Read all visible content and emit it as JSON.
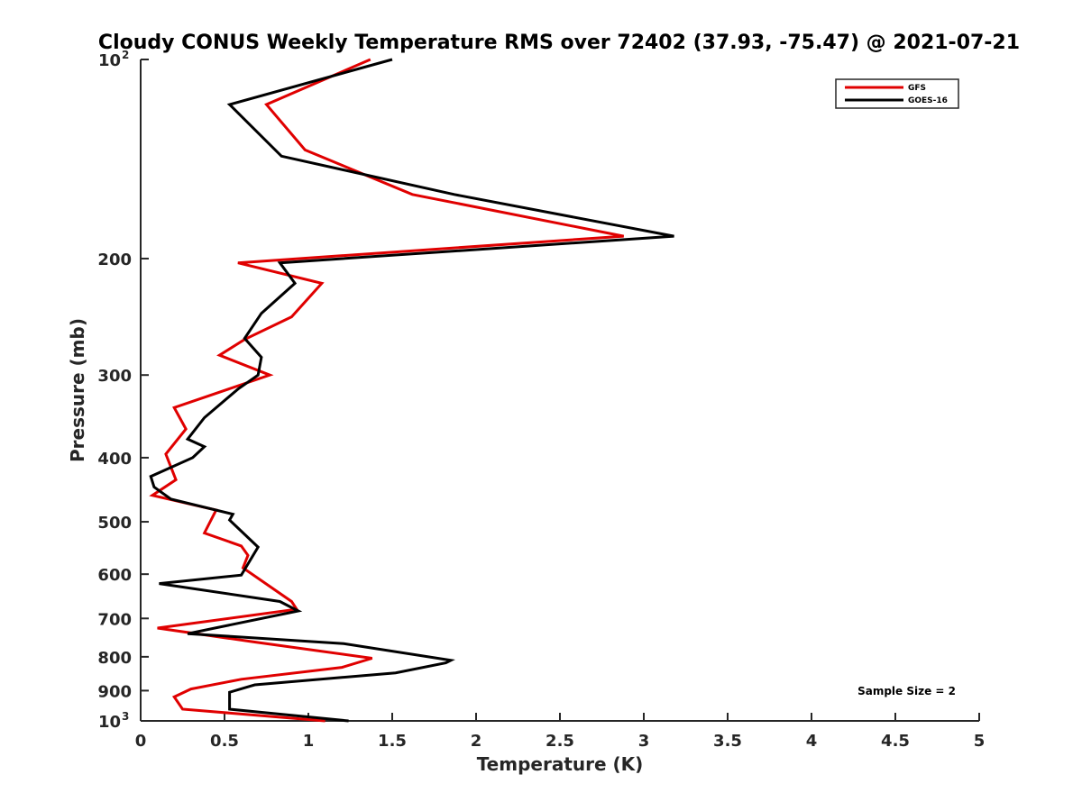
{
  "chart_data": {
    "type": "line",
    "title": "Cloudy CONUS Weekly Temperature RMS over 72402 (37.93, -75.47) @ 2021-07-21",
    "xlabel": "Temperature (K)",
    "ylabel": "Pressure (mb)",
    "xlim": [
      0,
      5
    ],
    "ylim": [
      100,
      1000
    ],
    "y_scale": "log",
    "y_reversed": true,
    "grid": false,
    "legend_position": "top-right",
    "x_ticks": [
      "0",
      "0.5",
      "1",
      "1.5",
      "2",
      "2.5",
      "3",
      "3.5",
      "4",
      "4.5",
      "5"
    ],
    "y_ticks": [
      {
        "value": 100,
        "base": "10",
        "sup": "2"
      },
      {
        "value": 200,
        "base": "200",
        "sup": ""
      },
      {
        "value": 300,
        "base": "300",
        "sup": ""
      },
      {
        "value": 400,
        "base": "400",
        "sup": ""
      },
      {
        "value": 500,
        "base": "500",
        "sup": ""
      },
      {
        "value": 600,
        "base": "600",
        "sup": ""
      },
      {
        "value": 700,
        "base": "700",
        "sup": ""
      },
      {
        "value": 800,
        "base": "800",
        "sup": ""
      },
      {
        "value": 900,
        "base": "900",
        "sup": ""
      },
      {
        "value": 1000,
        "base": "10",
        "sup": "3"
      }
    ],
    "annotation": "Sample Size = 2",
    "series": [
      {
        "name": "GFS",
        "color": "#e00000",
        "points": [
          [
            1.37,
            100
          ],
          [
            0.75,
            117
          ],
          [
            0.98,
            137
          ],
          [
            1.62,
            160
          ],
          [
            2.88,
            185
          ],
          [
            0.58,
            203
          ],
          [
            1.08,
            218
          ],
          [
            0.9,
            245
          ],
          [
            0.62,
            265
          ],
          [
            0.47,
            280
          ],
          [
            0.77,
            300
          ],
          [
            0.2,
            336
          ],
          [
            0.27,
            362
          ],
          [
            0.15,
            395
          ],
          [
            0.21,
            432
          ],
          [
            0.07,
            456
          ],
          [
            0.45,
            480
          ],
          [
            0.38,
            520
          ],
          [
            0.6,
            544
          ],
          [
            0.64,
            562
          ],
          [
            0.61,
            587
          ],
          [
            0.9,
            660
          ],
          [
            0.93,
            678
          ],
          [
            0.1,
            724
          ],
          [
            0.68,
            760
          ],
          [
            1.38,
            804
          ],
          [
            1.2,
            830
          ],
          [
            0.6,
            865
          ],
          [
            0.3,
            895
          ],
          [
            0.2,
            920
          ],
          [
            0.25,
            960
          ],
          [
            1.1,
            1000
          ]
        ]
      },
      {
        "name": "GOES-16",
        "color": "#000000",
        "points": [
          [
            1.5,
            100
          ],
          [
            0.53,
            117
          ],
          [
            0.84,
            140
          ],
          [
            1.87,
            160
          ],
          [
            3.18,
            185
          ],
          [
            0.83,
            203
          ],
          [
            0.92,
            218
          ],
          [
            0.72,
            242
          ],
          [
            0.62,
            264
          ],
          [
            0.72,
            282
          ],
          [
            0.7,
            300
          ],
          [
            0.58,
            315
          ],
          [
            0.38,
            348
          ],
          [
            0.28,
            375
          ],
          [
            0.38,
            385
          ],
          [
            0.31,
            400
          ],
          [
            0.06,
            427
          ],
          [
            0.08,
            443
          ],
          [
            0.18,
            462
          ],
          [
            0.55,
            487
          ],
          [
            0.53,
            497
          ],
          [
            0.68,
            540
          ],
          [
            0.7,
            546
          ],
          [
            0.6,
            602
          ],
          [
            0.11,
            620
          ],
          [
            0.83,
            660
          ],
          [
            0.94,
            682
          ],
          [
            0.28,
            738
          ],
          [
            1.21,
            764
          ],
          [
            1.85,
            810
          ],
          [
            1.82,
            817
          ],
          [
            1.52,
            846
          ],
          [
            0.68,
            882
          ],
          [
            0.53,
            905
          ],
          [
            0.53,
            960
          ],
          [
            1.24,
            1000
          ]
        ]
      }
    ]
  }
}
